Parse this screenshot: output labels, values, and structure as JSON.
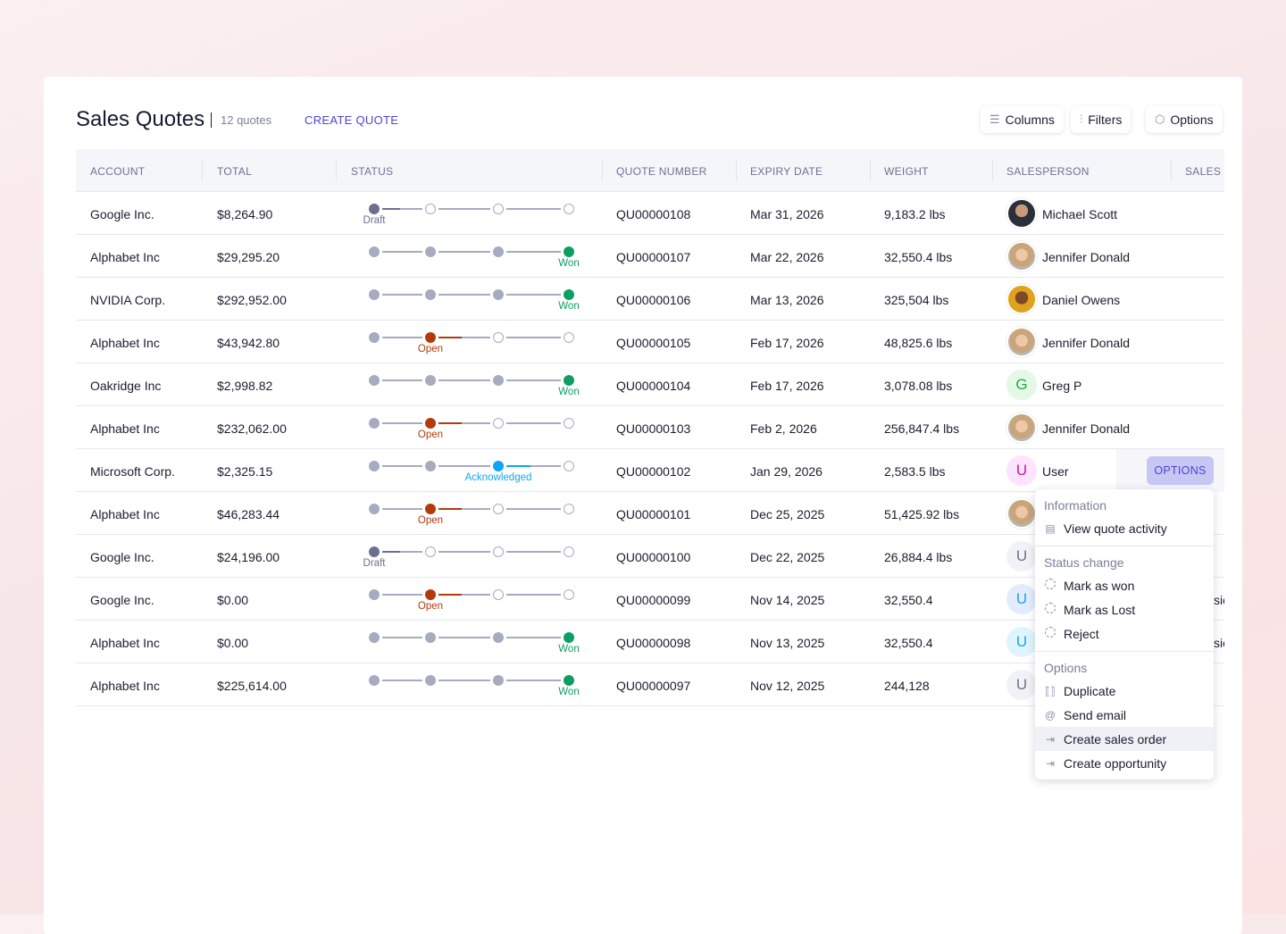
{
  "header": {
    "title": "Sales Quotes",
    "count": "12 quotes",
    "create_label": "CREATE QUOTE",
    "columns_label": "Columns",
    "filters_label": "Filters",
    "options_label": "Options"
  },
  "columns": [
    "ACCOUNT",
    "TOTAL",
    "STATUS",
    "QUOTE NUMBER",
    "EXPIRY DATE",
    "WEIGHT",
    "SALESPERSON",
    "SALES C"
  ],
  "colors": {
    "draft": "#6b7093",
    "open": "#b33a0b",
    "won": "#0d9e63",
    "acknowledged": "#0ea5f5",
    "inactive": "#a6abc0",
    "accent": "#4b44d6"
  },
  "rows": [
    {
      "account": "Google Inc.",
      "total": "$8,264.90",
      "stage": 0,
      "status": "Draft",
      "kind": "draft",
      "quote": "QU00000108",
      "expiry": "Mar 31, 2026",
      "weight": "9,183.2 lbs",
      "salesperson": "Michael Scott",
      "avatar": "photo-man",
      "sales": ""
    },
    {
      "account": "Alphabet Inc",
      "total": "$29,295.20",
      "stage": 3,
      "status": "Won",
      "kind": "won",
      "quote": "QU00000107",
      "expiry": "Mar 22, 2026",
      "weight": "32,550.4 lbs",
      "salesperson": "Jennifer Donald",
      "avatar": "photo-woman",
      "sales": ""
    },
    {
      "account": "NVIDIA Corp.",
      "total": "$292,952.00",
      "stage": 3,
      "status": "Won",
      "kind": "won",
      "quote": "QU00000106",
      "expiry": "Mar 13, 2026",
      "weight": "325,504 lbs",
      "salesperson": "Daniel Owens",
      "avatar": "photo-man2",
      "sales": ""
    },
    {
      "account": "Alphabet Inc",
      "total": "$43,942.80",
      "stage": 1,
      "status": "Open",
      "kind": "open",
      "quote": "QU00000105",
      "expiry": "Feb 17, 2026",
      "weight": "48,825.6 lbs",
      "salesperson": "Jennifer Donald",
      "avatar": "photo-woman",
      "sales": ""
    },
    {
      "account": "Oakridge Inc",
      "total": "$2,998.82",
      "stage": 3,
      "status": "Won",
      "kind": "won",
      "quote": "QU00000104",
      "expiry": "Feb 17, 2026",
      "weight": "3,078.08 lbs",
      "salesperson": "Greg P",
      "avatar": "G",
      "avatar_bg": "#e3f8e6",
      "avatar_fg": "#1fae46",
      "sales": ""
    },
    {
      "account": "Alphabet Inc",
      "total": "$232,062.00",
      "stage": 1,
      "status": "Open",
      "kind": "open",
      "quote": "QU00000103",
      "expiry": "Feb 2, 2026",
      "weight": "256,847.4 lbs",
      "salesperson": "Jennifer Donald",
      "avatar": "photo-woman",
      "sales": ""
    },
    {
      "account": "Microsoft Corp.",
      "total": "$2,325.15",
      "stage": 2,
      "status": "Acknowledged",
      "kind": "acknowledged",
      "quote": "QU00000102",
      "expiry": "Jan 29, 2026",
      "weight": "2,583.5 lbs",
      "salesperson": "User",
      "avatar": "U",
      "avatar_bg": "#fde3fb",
      "avatar_fg": "#c21aa8",
      "sales": "",
      "options_label": "OPTIONS"
    },
    {
      "account": "Alphabet Inc",
      "total": "$46,283.44",
      "stage": 1,
      "status": "Open",
      "kind": "open",
      "quote": "QU00000101",
      "expiry": "Dec 25, 2025",
      "weight": "51,425.92 lbs",
      "salesperson": "",
      "avatar": "photo-woman",
      "sales": ""
    },
    {
      "account": "Google Inc.",
      "total": "$24,196.00",
      "stage": 0,
      "status": "Draft",
      "kind": "draft",
      "quote": "QU00000100",
      "expiry": "Dec 22, 2025",
      "weight": "26,884.4 lbs",
      "salesperson": "",
      "avatar": "U",
      "avatar_bg": "#f1f2f5",
      "avatar_fg": "#6c7290",
      "sales": ""
    },
    {
      "account": "Google Inc.",
      "total": "$0.00",
      "stage": 1,
      "status": "Open",
      "kind": "open",
      "quote": "QU00000099",
      "expiry": "Nov 14, 2025",
      "weight": "32,550.4",
      "salesperson": "",
      "avatar": "U",
      "avatar_bg": "#e3ecfd",
      "avatar_fg": "#1aa5f0",
      "sales": "sic"
    },
    {
      "account": "Alphabet Inc",
      "total": "$0.00",
      "stage": 3,
      "status": "Won",
      "kind": "won",
      "quote": "QU00000098",
      "expiry": "Nov 13, 2025",
      "weight": "32,550.4",
      "salesperson": "",
      "avatar": "U",
      "avatar_bg": "#dff5fd",
      "avatar_fg": "#1aa5f0",
      "sales": "sic"
    },
    {
      "account": "Alphabet Inc",
      "total": "$225,614.00",
      "stage": 3,
      "status": "Won",
      "kind": "won",
      "quote": "QU00000097",
      "expiry": "Nov 12, 2025",
      "weight": "244,128",
      "salesperson": "",
      "avatar": "U",
      "avatar_bg": "#f1f2f5",
      "avatar_fg": "#6c7290",
      "sales": ""
    }
  ],
  "menu": {
    "sections": [
      {
        "title": "Information",
        "items": [
          {
            "label": "View quote activity",
            "icon": "id-card-icon"
          }
        ]
      },
      {
        "title": "Status change",
        "items": [
          {
            "label": "Mark as won",
            "icon": "dashed-circle-icon"
          },
          {
            "label": "Mark as Lost",
            "icon": "dashed-circle-icon"
          },
          {
            "label": "Reject",
            "icon": "dashed-circle-icon"
          }
        ]
      },
      {
        "title": "Options",
        "items": [
          {
            "label": "Duplicate",
            "icon": "duplicate-icon"
          },
          {
            "label": "Send email",
            "icon": "at-icon"
          },
          {
            "label": "Create sales order",
            "icon": "export-icon",
            "hover": true
          },
          {
            "label": "Create opportunity",
            "icon": "export-icon"
          }
        ]
      }
    ]
  }
}
